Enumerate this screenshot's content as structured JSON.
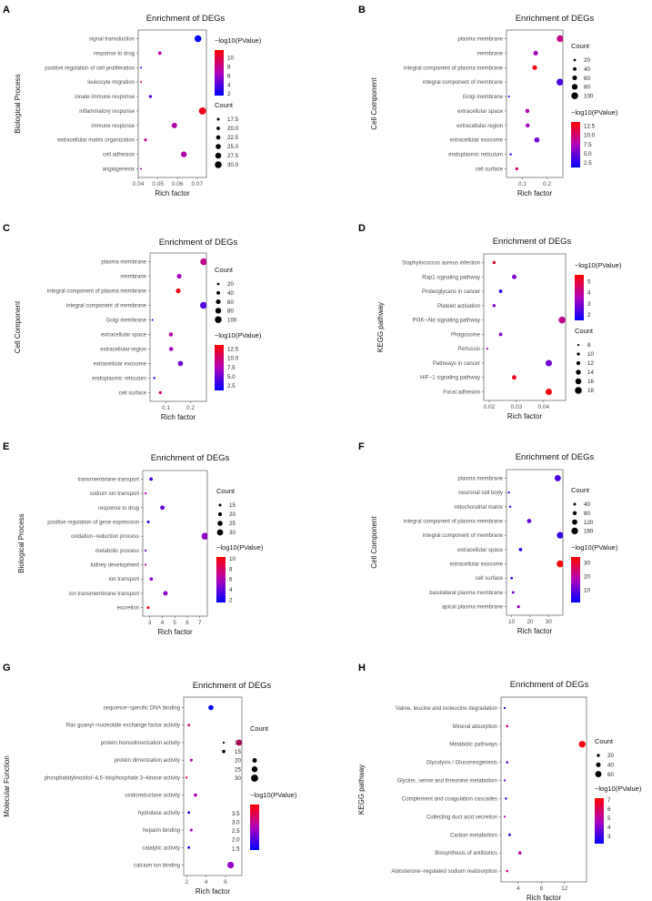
{
  "chart_data": [
    {
      "panel_label": "A",
      "type": "scatter",
      "title": "Enrichment of DEGs",
      "xlabel": "Rich factor",
      "ylabel": "Biological Process",
      "xlim": [
        0.04,
        0.0747
      ],
      "xticks": [
        {
          "v": 0.04,
          "label": "0.04"
        },
        {
          "v": 0.05,
          "label": "0.05"
        },
        {
          "v": 0.06,
          "label": "0.06"
        },
        {
          "v": 0.07,
          "label": "0.07"
        }
      ],
      "categories": [
        "signal transduction",
        "response to drug",
        "positive regulation of cell proliferation",
        "leukocyte migration",
        "innate immune response",
        "inflammatory response",
        "immune response",
        "extracellular matrix organization",
        "cell adhesion",
        "angiogenesis"
      ],
      "rich_factor": [
        0.0704,
        0.051,
        0.0414,
        0.0414,
        0.0462,
        0.0727,
        0.0584,
        0.0437,
        0.0632,
        0.0414
      ],
      "count": [
        30,
        20,
        15,
        15,
        19,
        31,
        26,
        18,
        27,
        15
      ],
      "neg_log10_pvalue": [
        1.5,
        7,
        2.5,
        9,
        4,
        11,
        7,
        8,
        7,
        7
      ],
      "size_legend": {
        "title": "Count",
        "range": [
          15,
          31
        ],
        "items": [
          {
            "v": 17.5,
            "label": "17.5"
          },
          {
            "v": 20,
            "label": "20.0"
          },
          {
            "v": 22.5,
            "label": "22.5"
          },
          {
            "v": 25,
            "label": "25.0"
          },
          {
            "v": 27.5,
            "label": "27.5"
          },
          {
            "v": 30,
            "label": "30.0"
          }
        ]
      },
      "color_legend": {
        "title": "−log10(PValue)",
        "range": [
          1.6,
          11.7
        ],
        "ticks": [
          {
            "v": 10,
            "label": "10"
          },
          {
            "v": 8,
            "label": "8"
          },
          {
            "v": 6,
            "label": "6"
          },
          {
            "v": 4,
            "label": "4"
          },
          {
            "v": 2,
            "label": "2"
          }
        ]
      }
    },
    {
      "panel_label": "B",
      "type": "scatter",
      "title": "Enrichment of DEGs",
      "xlabel": "Rich factor",
      "ylabel": "Cell Component",
      "xlim": [
        0.035,
        0.265
      ],
      "xticks": [
        {
          "v": 0.1,
          "label": "0.1"
        },
        {
          "v": 0.2,
          "label": "0.2"
        }
      ],
      "categories": [
        "plasma membrane",
        "membrane",
        "integral component of plasma membrane",
        "integral component of membrane",
        "Golgi membrane",
        "extracellular space",
        "extracellular region",
        "extracellular exosome",
        "endoplasmic reticulum",
        "cell surface"
      ],
      "rich_factor": [
        0.254,
        0.154,
        0.15,
        0.253,
        0.045,
        0.12,
        0.121,
        0.159,
        0.052,
        0.077
      ],
      "count": [
        100,
        60,
        60,
        100,
        10,
        50,
        50,
        70,
        15,
        30
      ],
      "neg_log10_pvalue": [
        9,
        7,
        13,
        4,
        2,
        8,
        7,
        5,
        1.5,
        10
      ],
      "size_legend": {
        "title": "Count",
        "range": [
          8,
          105
        ],
        "items": [
          {
            "v": 20,
            "label": "20"
          },
          {
            "v": 40,
            "label": "40"
          },
          {
            "v": 60,
            "label": "60"
          },
          {
            "v": 80,
            "label": "80"
          },
          {
            "v": 100,
            "label": "100"
          }
        ]
      },
      "color_legend": {
        "title": "−log10(PValue)",
        "range": [
          1.2,
          13.6
        ],
        "ticks": [
          {
            "v": 12.5,
            "label": "12.5"
          },
          {
            "v": 10,
            "label": "10.0"
          },
          {
            "v": 7.5,
            "label": "7.5"
          },
          {
            "v": 5,
            "label": "5.0"
          },
          {
            "v": 2.5,
            "label": "2.5"
          }
        ]
      }
    },
    {
      "panel_label": "C",
      "type": "scatter",
      "title": "Enrichment of DEGs",
      "xlabel": "Rich factor",
      "ylabel": "Cell Component",
      "xlim": [
        0.035,
        0.265
      ],
      "xticks": [
        {
          "v": 0.1,
          "label": "0.1"
        },
        {
          "v": 0.2,
          "label": "0.2"
        }
      ],
      "categories": [
        "plasma membrane",
        "membrane",
        "integral component of plasma membrane",
        "integral component of membrane",
        "Golgi membrane",
        "extracellular space",
        "extracellular region",
        "extracellular exosome",
        "endoplasmic reticulum",
        "cell surface"
      ],
      "rich_factor": [
        0.254,
        0.154,
        0.15,
        0.253,
        0.045,
        0.12,
        0.121,
        0.159,
        0.052,
        0.077
      ],
      "count": [
        100,
        60,
        60,
        100,
        10,
        50,
        50,
        70,
        15,
        30
      ],
      "neg_log10_pvalue": [
        9,
        7,
        13,
        4,
        2,
        8,
        7,
        5,
        1.5,
        10
      ],
      "size_legend": {
        "title": "Count",
        "range": [
          8,
          105
        ],
        "items": [
          {
            "v": 20,
            "label": "20"
          },
          {
            "v": 40,
            "label": "40"
          },
          {
            "v": 60,
            "label": "60"
          },
          {
            "v": 80,
            "label": "80"
          },
          {
            "v": 100,
            "label": "100"
          }
        ]
      },
      "color_legend": {
        "title": "−log10(PValue)",
        "range": [
          1.2,
          13.6
        ],
        "ticks": [
          {
            "v": 12.5,
            "label": "12.5"
          },
          {
            "v": 10,
            "label": "10.0"
          },
          {
            "v": 7.5,
            "label": "7.5"
          },
          {
            "v": 5,
            "label": "5.0"
          },
          {
            "v": 2.5,
            "label": "2.5"
          }
        ]
      }
    },
    {
      "panel_label": "D",
      "type": "scatter",
      "title": "Enrichment of DEGs",
      "xlabel": "Rich factor",
      "ylabel": "KEGG pathway",
      "xlim": [
        0.018,
        0.0481
      ],
      "xticks": [
        {
          "v": 0.02,
          "label": "0.02"
        },
        {
          "v": 0.03,
          "label": "0.03"
        },
        {
          "v": 0.04,
          "label": "0.04"
        }
      ],
      "categories": [
        "Staphylococcus aureus infection",
        "Rap1 signaling pathway",
        "Proteoglycans in cancer",
        "Platelet activation",
        "PI3K−Akt signaling pathway",
        "Phagosome",
        "Pertussis",
        "Pathways in cancer",
        "HIF−1 signaling pathway",
        "Focal adhesion"
      ],
      "rich_factor": [
        0.0218,
        0.0292,
        0.0242,
        0.0218,
        0.0468,
        0.0242,
        0.0193,
        0.0419,
        0.0292,
        0.0419
      ],
      "count": [
        10,
        13,
        11,
        10,
        18,
        11,
        8,
        17,
        13,
        17
      ],
      "neg_log10_pvalue": [
        5,
        3,
        1.8,
        3,
        4,
        3,
        3.5,
        2.8,
        5.3,
        5.5
      ],
      "size_legend": {
        "title": "Count",
        "range": [
          7.5,
          18.5
        ],
        "items": [
          {
            "v": 8,
            "label": "8"
          },
          {
            "v": 10,
            "label": "10"
          },
          {
            "v": 12,
            "label": "12"
          },
          {
            "v": 14,
            "label": "14"
          },
          {
            "v": 16,
            "label": "16"
          },
          {
            "v": 18,
            "label": "18"
          }
        ]
      },
      "color_legend": {
        "title": "−log10(PValue)",
        "range": [
          1.5,
          5.6
        ],
        "ticks": [
          {
            "v": 5,
            "label": "5"
          },
          {
            "v": 4,
            "label": "4"
          },
          {
            "v": 3,
            "label": "3"
          },
          {
            "v": 2,
            "label": "2"
          }
        ]
      }
    },
    {
      "panel_label": "E",
      "type": "scatter",
      "title": "Enrichment of DEGs",
      "xlabel": "Rich factor",
      "ylabel": "Biological Process",
      "xlim": [
        2.44,
        7.6
      ],
      "xticks": [
        {
          "v": 3,
          "label": "3"
        },
        {
          "v": 4,
          "label": "4"
        },
        {
          "v": 5,
          "label": "5"
        },
        {
          "v": 6,
          "label": "6"
        },
        {
          "v": 7,
          "label": "7"
        }
      ],
      "categories": [
        "transmembrane transport",
        "sodium ion transport",
        "response to drug",
        "positive regulation of gene expression",
        "oxidation−reduction process",
        "metabolic process",
        "kidney development",
        "ion transport",
        "ion transmembrane transport",
        "excretion"
      ],
      "rich_factor": [
        3.1,
        2.66,
        4.01,
        2.88,
        7.41,
        2.66,
        2.66,
        3.12,
        4.25,
        2.88
      ],
      "count": [
        18,
        12,
        22,
        15,
        33,
        12,
        12,
        18,
        23,
        15
      ],
      "neg_log10_pvalue": [
        3,
        6,
        4,
        2,
        5,
        3.5,
        6,
        5,
        5,
        10
      ],
      "size_legend": {
        "title": "Count",
        "range": [
          11,
          34
        ],
        "items": [
          {
            "v": 15,
            "label": "15"
          },
          {
            "v": 20,
            "label": "20"
          },
          {
            "v": 25,
            "label": "25"
          },
          {
            "v": 30,
            "label": "30"
          }
        ]
      },
      "color_legend": {
        "title": "−log10(PValue)",
        "range": [
          1.5,
          10.3
        ],
        "ticks": [
          {
            "v": 10,
            "label": "10"
          },
          {
            "v": 8,
            "label": "8"
          },
          {
            "v": 6,
            "label": "6"
          },
          {
            "v": 4,
            "label": "4"
          },
          {
            "v": 2,
            "label": "2"
          }
        ]
      }
    },
    {
      "panel_label": "F",
      "type": "scatter",
      "title": "Enrichment of DEGs",
      "xlabel": "Rich factor",
      "ylabel": "Cell Component",
      "xlim": [
        7.2,
        37.8
      ],
      "xticks": [
        {
          "v": 10,
          "label": "10"
        },
        {
          "v": 20,
          "label": "20"
        },
        {
          "v": 30,
          "label": "30"
        }
      ],
      "categories": [
        "plasma membrane",
        "neuronal cell body",
        "mitochondrial matrix",
        "integral component of plasma membrane",
        "integral component of membrane",
        "extracellular space",
        "extracellular exosome",
        "cell surface",
        "basolateral plasma membrane",
        "apical plasma membrane"
      ],
      "rich_factor": [
        35,
        8.5,
        9.2,
        19.5,
        36.3,
        14.8,
        36.3,
        10,
        10.8,
        13.7
      ],
      "count": [
        150,
        20,
        25,
        90,
        160,
        60,
        170,
        35,
        40,
        50
      ],
      "neg_log10_pvalue": [
        8,
        3,
        3,
        10,
        6,
        3,
        33,
        3,
        12,
        15
      ],
      "size_legend": {
        "title": "Count",
        "range": [
          15,
          175
        ],
        "items": [
          {
            "v": 40,
            "label": "40"
          },
          {
            "v": 80,
            "label": "80"
          },
          {
            "v": 120,
            "label": "120"
          },
          {
            "v": 160,
            "label": "160"
          }
        ]
      },
      "color_legend": {
        "title": "−log10(PValue)",
        "range": [
          1,
          34
        ],
        "ticks": [
          {
            "v": 30,
            "label": "30"
          },
          {
            "v": 20,
            "label": "20"
          },
          {
            "v": 10,
            "label": "10"
          }
        ]
      }
    },
    {
      "panel_label": "G",
      "type": "scatter",
      "title": "Enrichment of DEGs",
      "xlabel": "Rich factor",
      "ylabel": "Molecular Function",
      "xlim": [
        1.69,
        7.69
      ],
      "xticks": [
        {
          "v": 2,
          "label": "2"
        },
        {
          "v": 4,
          "label": "4"
        },
        {
          "v": 6,
          "label": "6"
        }
      ],
      "categories": [
        "sequence−specific DNA binding",
        "Ras guanyl−nucleotide exchange factor activity",
        "protein homodimerization activity",
        "protein dimerization activity",
        "phosphatidylinositol−4,5−bisphosphate 3−kinase activity",
        "oxidoreductase activity",
        "hydrolase activity",
        "heparin binding",
        "catalytic activity",
        "calcium ion binding"
      ],
      "rich_factor": [
        4.5,
        2.22,
        7.4,
        2.47,
        1.97,
        2.9,
        2.22,
        2.47,
        2.22,
        6.53
      ],
      "count": [
        22,
        12,
        26,
        13,
        10,
        15,
        12,
        13,
        12,
        28
      ],
      "neg_log10_pvalue": [
        1.4,
        3.2,
        3.3,
        2.8,
        3.6,
        2.8,
        1.6,
        2.6,
        1.7,
        2.5
      ],
      "size_legend": {
        "title": "Count",
        "range": [
          9,
          30
        ],
        "items": [
          {
            "v": 10,
            "label": "10"
          },
          {
            "v": 15,
            "label": "15"
          },
          {
            "v": 20,
            "label": "20"
          },
          {
            "v": 25,
            "label": "25"
          },
          {
            "v": 30,
            "label": "30"
          }
        ]
      },
      "color_legend": {
        "title": "−log10(PValue)",
        "range": [
          1.4,
          4.0
        ],
        "ticks": [
          {
            "v": 3.5,
            "label": "3.5"
          },
          {
            "v": 3.0,
            "label": "3.0"
          },
          {
            "v": 2.5,
            "label": "2.5"
          },
          {
            "v": 2.0,
            "label": "2.0"
          },
          {
            "v": 1.5,
            "label": "1.5"
          }
        ]
      }
    },
    {
      "panel_label": "H",
      "type": "scatter",
      "title": "Enrichment of DEGs",
      "xlabel": "Rich factor",
      "ylabel": "KEGG pathway",
      "xlim": [
        1.05,
        15.8
      ],
      "xticks": [
        {
          "v": 4,
          "label": "4"
        },
        {
          "v": 8,
          "label": "8"
        },
        {
          "v": 12,
          "label": "12"
        }
      ],
      "categories": [
        "Valine, leucine and isoleucine degradation",
        "Mineral absorption",
        "Metabolic pathways",
        "Glycolysis / Gluconeogenesis",
        "Glycine, serine and threonine metabolism",
        "Complement and coagulation cascades",
        "Collecting duct acid secretion",
        "Carbon metabolism",
        "Biosynthesis of antibiotics",
        "Aldosterone−regulated sodium reabsorption"
      ],
      "rich_factor": [
        1.68,
        2.1,
        15.05,
        2.1,
        1.68,
        1.9,
        1.68,
        2.53,
        4.3,
        2.1
      ],
      "count": [
        8,
        12,
        65,
        12,
        8,
        10,
        8,
        15,
        22,
        12
      ],
      "neg_log10_pvalue": [
        3,
        5.5,
        7,
        3.5,
        3.5,
        2.3,
        5,
        3,
        5,
        5.5
      ],
      "size_legend": {
        "title": "Count",
        "range": [
          5,
          70
        ],
        "items": [
          {
            "v": 20,
            "label": "20"
          },
          {
            "v": 40,
            "label": "40"
          },
          {
            "v": 60,
            "label": "60"
          }
        ]
      },
      "color_legend": {
        "title": "−log10(PValue)",
        "range": [
          2.2,
          7.2
        ],
        "ticks": [
          {
            "v": 7,
            "label": "7"
          },
          {
            "v": 6,
            "label": "6"
          },
          {
            "v": 5,
            "label": "5"
          },
          {
            "v": 4,
            "label": "4"
          },
          {
            "v": 3,
            "label": "3"
          }
        ]
      }
    }
  ],
  "colors": {
    "low": "#0000ff",
    "mid": "#b000bb",
    "high": "#ff0000",
    "frame": "#7f7f7f"
  }
}
